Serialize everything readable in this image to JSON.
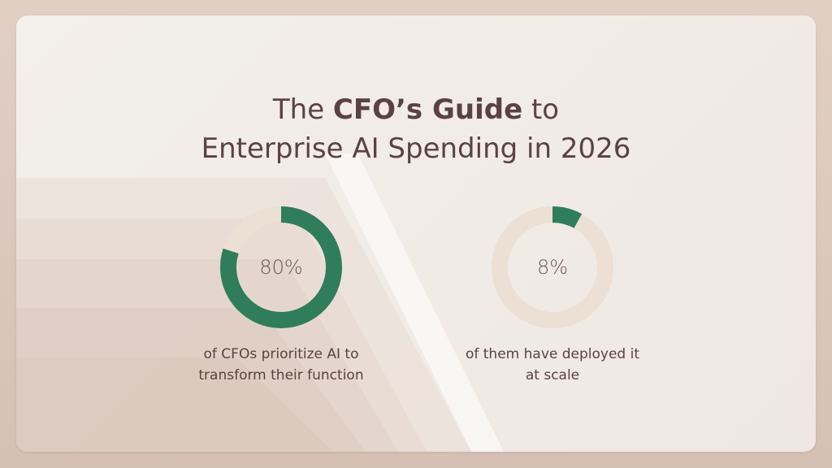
{
  "title": {
    "prefix": "The ",
    "bold": "CFO’s Guide",
    "suffix": " to",
    "line2": "Enterprise AI Spending in 2026"
  },
  "colors": {
    "ring_fill": "#2f7d5b",
    "ring_track": "#ecdfd4",
    "text": "#5b4240",
    "center_text": "#6e5a56"
  },
  "chart_data": [
    {
      "type": "pie",
      "values": [
        80,
        20
      ],
      "value_label": "80%",
      "caption_lines": [
        "of CFOs prioritize AI to",
        "transform their function"
      ]
    },
    {
      "type": "pie",
      "values": [
        8,
        92
      ],
      "value_label": "8%",
      "caption_lines": [
        "of them have deployed it",
        "at scale"
      ]
    }
  ]
}
